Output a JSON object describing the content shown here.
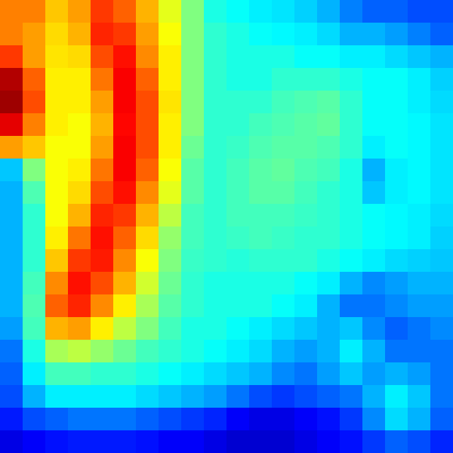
{
  "chart_data": {
    "type": "heatmap",
    "tick_labels": false,
    "zlim": [
      0,
      1
    ],
    "cells": [
      [
        0.75,
        0.75,
        0.68,
        0.72,
        0.82,
        0.78,
        0.7,
        0.6,
        0.5,
        0.4,
        0.38,
        0.36,
        0.35,
        0.33,
        0.3,
        0.25,
        0.22,
        0.22,
        0.2,
        0.2
      ],
      [
        0.75,
        0.72,
        0.66,
        0.7,
        0.84,
        0.82,
        0.72,
        0.62,
        0.5,
        0.42,
        0.4,
        0.38,
        0.37,
        0.36,
        0.34,
        0.3,
        0.3,
        0.28,
        0.25,
        0.22
      ],
      [
        0.82,
        0.72,
        0.65,
        0.66,
        0.8,
        0.86,
        0.74,
        0.64,
        0.5,
        0.42,
        0.4,
        0.4,
        0.4,
        0.38,
        0.38,
        0.36,
        0.36,
        0.34,
        0.32,
        0.3
      ],
      [
        0.95,
        0.78,
        0.64,
        0.64,
        0.76,
        0.88,
        0.78,
        0.64,
        0.5,
        0.42,
        0.4,
        0.4,
        0.42,
        0.42,
        0.42,
        0.4,
        0.38,
        0.38,
        0.36,
        0.33
      ],
      [
        0.97,
        0.8,
        0.64,
        0.64,
        0.72,
        0.88,
        0.8,
        0.65,
        0.5,
        0.42,
        0.42,
        0.42,
        0.44,
        0.45,
        0.46,
        0.42,
        0.38,
        0.38,
        0.36,
        0.34
      ],
      [
        0.9,
        0.75,
        0.64,
        0.62,
        0.7,
        0.87,
        0.8,
        0.64,
        0.5,
        0.42,
        0.42,
        0.44,
        0.45,
        0.46,
        0.47,
        0.42,
        0.38,
        0.38,
        0.37,
        0.35
      ],
      [
        0.72,
        0.68,
        0.62,
        0.62,
        0.72,
        0.88,
        0.8,
        0.64,
        0.48,
        0.42,
        0.43,
        0.45,
        0.46,
        0.46,
        0.45,
        0.42,
        0.36,
        0.38,
        0.37,
        0.35
      ],
      [
        0.32,
        0.5,
        0.62,
        0.64,
        0.76,
        0.88,
        0.78,
        0.62,
        0.46,
        0.42,
        0.44,
        0.46,
        0.47,
        0.45,
        0.44,
        0.4,
        0.3,
        0.36,
        0.37,
        0.35
      ],
      [
        0.3,
        0.45,
        0.62,
        0.66,
        0.8,
        0.86,
        0.74,
        0.6,
        0.46,
        0.42,
        0.44,
        0.46,
        0.46,
        0.44,
        0.42,
        0.4,
        0.32,
        0.36,
        0.37,
        0.35
      ],
      [
        0.3,
        0.42,
        0.62,
        0.7,
        0.84,
        0.82,
        0.7,
        0.56,
        0.44,
        0.42,
        0.44,
        0.44,
        0.44,
        0.43,
        0.42,
        0.4,
        0.38,
        0.37,
        0.36,
        0.34
      ],
      [
        0.3,
        0.42,
        0.64,
        0.76,
        0.86,
        0.78,
        0.66,
        0.52,
        0.44,
        0.42,
        0.43,
        0.44,
        0.43,
        0.42,
        0.42,
        0.4,
        0.38,
        0.37,
        0.36,
        0.33
      ],
      [
        0.3,
        0.42,
        0.68,
        0.82,
        0.85,
        0.74,
        0.62,
        0.5,
        0.43,
        0.42,
        0.41,
        0.42,
        0.42,
        0.42,
        0.4,
        0.38,
        0.36,
        0.34,
        0.33,
        0.32
      ],
      [
        0.3,
        0.44,
        0.74,
        0.86,
        0.8,
        0.7,
        0.58,
        0.48,
        0.42,
        0.4,
        0.4,
        0.4,
        0.4,
        0.38,
        0.36,
        0.3,
        0.26,
        0.28,
        0.3,
        0.3
      ],
      [
        0.3,
        0.45,
        0.78,
        0.84,
        0.74,
        0.64,
        0.54,
        0.46,
        0.42,
        0.4,
        0.4,
        0.4,
        0.38,
        0.36,
        0.3,
        0.24,
        0.24,
        0.26,
        0.28,
        0.28
      ],
      [
        0.28,
        0.44,
        0.7,
        0.72,
        0.64,
        0.56,
        0.5,
        0.44,
        0.4,
        0.4,
        0.38,
        0.36,
        0.34,
        0.32,
        0.3,
        0.32,
        0.26,
        0.22,
        0.24,
        0.26
      ],
      [
        0.24,
        0.4,
        0.54,
        0.56,
        0.52,
        0.48,
        0.44,
        0.42,
        0.4,
        0.38,
        0.36,
        0.34,
        0.3,
        0.28,
        0.3,
        0.36,
        0.3,
        0.24,
        0.24,
        0.24
      ],
      [
        0.22,
        0.36,
        0.44,
        0.44,
        0.42,
        0.42,
        0.4,
        0.38,
        0.36,
        0.34,
        0.32,
        0.3,
        0.26,
        0.24,
        0.28,
        0.32,
        0.28,
        0.3,
        0.28,
        0.24
      ],
      [
        0.2,
        0.3,
        0.36,
        0.36,
        0.36,
        0.36,
        0.34,
        0.32,
        0.3,
        0.28,
        0.24,
        0.2,
        0.18,
        0.2,
        0.22,
        0.24,
        0.3,
        0.36,
        0.32,
        0.24
      ],
      [
        0.15,
        0.2,
        0.22,
        0.24,
        0.24,
        0.24,
        0.22,
        0.2,
        0.18,
        0.16,
        0.12,
        0.1,
        0.1,
        0.12,
        0.14,
        0.18,
        0.26,
        0.34,
        0.3,
        0.22
      ],
      [
        0.1,
        0.12,
        0.14,
        0.15,
        0.15,
        0.15,
        0.14,
        0.12,
        0.12,
        0.1,
        0.08,
        0.08,
        0.08,
        0.1,
        0.12,
        0.14,
        0.18,
        0.22,
        0.2,
        0.16
      ]
    ]
  }
}
